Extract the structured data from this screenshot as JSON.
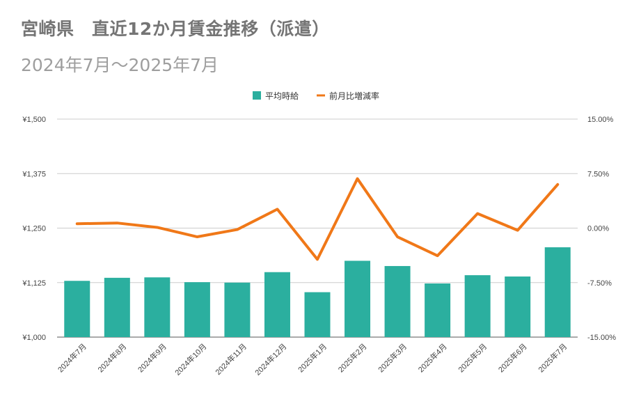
{
  "title": "宮崎県　直近12か月賃金推移（派遣）",
  "subtitle": "2024年7月～2025年7月",
  "chart_data": {
    "type": "bar",
    "categories": [
      "2024年7月",
      "2024年8月",
      "2024年9月",
      "2024年10月",
      "2024年11月",
      "2024年12月",
      "2025年1月",
      "2025年2月",
      "2025年3月",
      "2025年4月",
      "2025年5月",
      "2025年6月",
      "2025年7月"
    ],
    "series": [
      {
        "name": "平均時給",
        "type": "bar",
        "axis": "left",
        "color": "#2baf9f",
        "values": [
          1129,
          1136,
          1137,
          1126,
          1125,
          1149,
          1103,
          1175,
          1163,
          1123,
          1142,
          1139,
          1206
        ]
      },
      {
        "name": "前月比増減率",
        "type": "line",
        "axis": "right",
        "color": "#f07818",
        "values": [
          0.6,
          0.7,
          0.1,
          -1.2,
          -0.2,
          2.6,
          -4.3,
          6.8,
          -1.2,
          -3.8,
          2.0,
          -0.3,
          6.0
        ]
      }
    ],
    "y_left": {
      "min": 1000,
      "max": 1500,
      "ticks": [
        "¥1,000",
        "¥1,125",
        "¥1,250",
        "¥1,375",
        "¥1,500"
      ]
    },
    "y_right": {
      "min": -15,
      "max": 15,
      "ticks": [
        "-15.00%",
        "-7.50%",
        "0.00%",
        "7.50%",
        "15.00%"
      ]
    },
    "grid": true,
    "legend": "top-center"
  }
}
